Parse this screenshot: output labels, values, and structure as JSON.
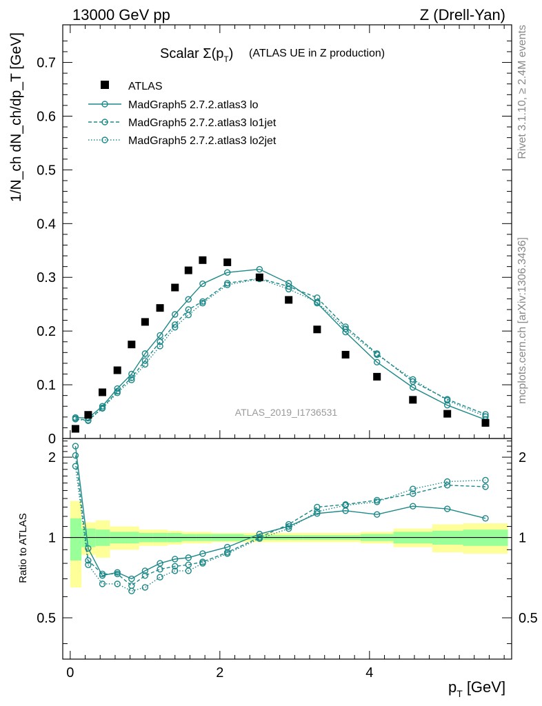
{
  "header": {
    "left": "13000 GeV pp",
    "right": "Z (Drell-Yan)"
  },
  "side_labels": {
    "rivet": "Rivet 3.1.10, ≥ 2.4M events",
    "mcplots": "mcplots.cern.ch [arXiv:1306.3436]"
  },
  "colors": {
    "mc": "#1b8787",
    "band_inner": "#99ff99",
    "band_outer": "#ffff99",
    "data": "#000000",
    "watermark": "#999999"
  },
  "chart_data": {
    "type": "scatter",
    "title_prefix": "Scalar Σ(p",
    "title_sub": "T",
    "title_mid": ")",
    "title_suffix": "(ATLAS UE in Z production)",
    "watermark": "ATLAS_2019_I1736531",
    "xlabel_main": "p",
    "xlabel_sub": "T",
    "xlabel_unit": "[GeV]",
    "ylabel": "1/N_ch dN_ch/dp_T [GeV]",
    "ratio_ylabel": "Ratio to ATLAS",
    "xlim": [
      -0.1,
      5.9
    ],
    "ylim": [
      0,
      0.77
    ],
    "ratio_ylim": [
      0.35,
      2.35
    ],
    "x_ticks": [
      "0",
      "2",
      "4"
    ],
    "y_ticks": [
      "0",
      "0.1",
      "0.2",
      "0.3",
      "0.4",
      "0.5",
      "0.6",
      "0.7"
    ],
    "ratio_ticks": [
      "0.5",
      "1",
      "2"
    ],
    "legend": {
      "data": "ATLAS",
      "lo": "MadGraph5 2.7.2.atlas3 lo",
      "lo1jet": "MadGraph5 2.7.2.atlas3 lo1jet",
      "lo2jet": "MadGraph5 2.7.2.atlas3 lo2jet"
    },
    "x": [
      0.07,
      0.24,
      0.43,
      0.63,
      0.82,
      1.0,
      1.2,
      1.4,
      1.58,
      1.77,
      2.1,
      2.53,
      2.92,
      3.3,
      3.68,
      4.1,
      4.58,
      5.04,
      5.55
    ],
    "data_values": [
      0.018,
      0.044,
      0.086,
      0.127,
      0.175,
      0.217,
      0.243,
      0.281,
      0.313,
      0.332,
      0.328,
      0.3,
      0.258,
      0.203,
      0.156,
      0.115,
      0.072,
      0.046,
      0.029
    ],
    "series": [
      {
        "name": "lo",
        "dash": "solid",
        "values": [
          0.039,
          0.038,
          0.06,
          0.093,
          0.12,
          0.158,
          0.192,
          0.231,
          0.259,
          0.288,
          0.309,
          0.315,
          0.289,
          0.252,
          0.198,
          0.142,
          0.095,
          0.062,
          0.035
        ],
        "ratio": [
          2.2,
          0.91,
          0.72,
          0.74,
          0.7,
          0.75,
          0.8,
          0.83,
          0.84,
          0.87,
          0.92,
          1.03,
          1.1,
          1.23,
          1.26,
          1.22,
          1.31,
          1.28,
          1.18
        ]
      },
      {
        "name": "lo1jet",
        "dash": "dashed",
        "values": [
          0.037,
          0.034,
          0.057,
          0.088,
          0.113,
          0.145,
          0.18,
          0.212,
          0.24,
          0.255,
          0.289,
          0.298,
          0.283,
          0.262,
          0.208,
          0.158,
          0.106,
          0.073,
          0.045
        ],
        "ratio": [
          2.03,
          0.82,
          0.73,
          0.73,
          0.66,
          0.72,
          0.76,
          0.78,
          0.79,
          0.81,
          0.88,
          1.0,
          1.12,
          1.3,
          1.33,
          1.38,
          1.46,
          1.57,
          1.55
        ]
      },
      {
        "name": "lo2jet",
        "dash": "dotted",
        "values": [
          0.036,
          0.033,
          0.056,
          0.085,
          0.109,
          0.138,
          0.172,
          0.207,
          0.23,
          0.252,
          0.286,
          0.297,
          0.278,
          0.254,
          0.204,
          0.156,
          0.11,
          0.071,
          0.041
        ],
        "ratio": [
          1.85,
          0.79,
          0.67,
          0.67,
          0.63,
          0.65,
          0.71,
          0.75,
          0.75,
          0.8,
          0.87,
          0.99,
          1.08,
          1.25,
          1.32,
          1.36,
          1.52,
          1.62,
          1.64
        ]
      }
    ],
    "bands": {
      "edges": [
        0.0,
        0.15,
        0.34,
        0.53,
        0.73,
        0.92,
        1.1,
        1.3,
        1.49,
        1.68,
        1.89,
        2.32,
        2.73,
        3.11,
        3.49,
        3.88,
        4.32,
        4.84,
        5.25,
        5.85
      ],
      "inner_lo": [
        0.82,
        0.92,
        0.93,
        0.95,
        0.95,
        0.96,
        0.96,
        0.96,
        0.97,
        0.97,
        0.97,
        0.98,
        0.98,
        0.98,
        0.98,
        0.97,
        0.95,
        0.94,
        0.93
      ],
      "inner_hi": [
        1.18,
        1.08,
        1.07,
        1.05,
        1.05,
        1.04,
        1.04,
        1.04,
        1.03,
        1.03,
        1.03,
        1.02,
        1.02,
        1.02,
        1.02,
        1.03,
        1.05,
        1.06,
        1.07
      ],
      "outer_lo": [
        0.65,
        0.86,
        0.84,
        0.9,
        0.9,
        0.93,
        0.93,
        0.94,
        0.95,
        0.95,
        0.96,
        0.96,
        0.96,
        0.96,
        0.96,
        0.95,
        0.92,
        0.88,
        0.87
      ],
      "outer_hi": [
        1.37,
        1.14,
        1.16,
        1.1,
        1.1,
        1.07,
        1.07,
        1.06,
        1.05,
        1.05,
        1.04,
        1.04,
        1.04,
        1.04,
        1.04,
        1.05,
        1.08,
        1.12,
        1.13
      ]
    }
  }
}
